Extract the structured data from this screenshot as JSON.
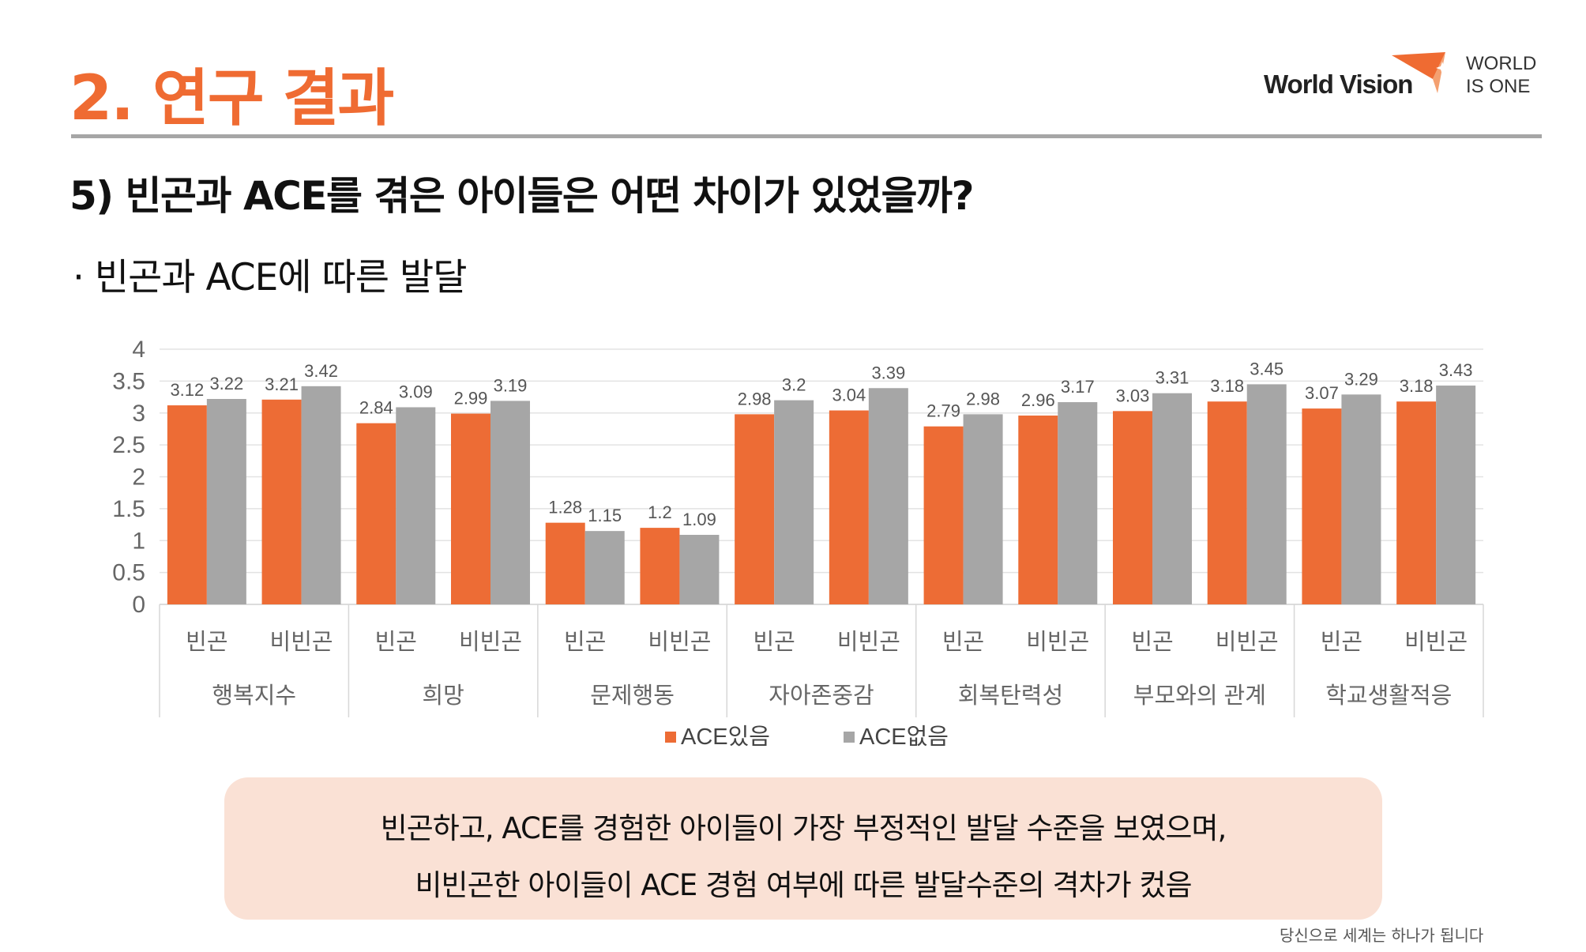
{
  "header": {
    "title": "2. 연구 결과",
    "logo_text": "World Vision",
    "logo_tagline_1": "WORLD",
    "logo_tagline_2": "IS ONE"
  },
  "question": "5) 빈곤과 ACE를 겪은 아이들은 어떤 차이가 있었을까?",
  "bullet": "· 빈곤과 ACE에 따른 발달",
  "colors": {
    "accent": "#ef6b32",
    "ace_yes": "#ed6c35",
    "ace_no": "#a6a6a6",
    "summary_bg": "#fae1d5"
  },
  "chart_data": {
    "type": "bar",
    "ylim": [
      0,
      4
    ],
    "yticks": [
      "0",
      "0.5",
      "1",
      "1.5",
      "2",
      "2.5",
      "3",
      "3.5",
      "4"
    ],
    "grid": true,
    "legend_position": "bottom",
    "groups": [
      "행복지수",
      "희망",
      "문제행동",
      "자아존중감",
      "회복탄력성",
      "부모와의 관계",
      "학교생활적응"
    ],
    "subcategories": [
      "빈곤",
      "비빈곤"
    ],
    "series": [
      {
        "name": "ACE있음",
        "values": [
          3.12,
          3.21,
          2.84,
          2.99,
          1.28,
          1.2,
          2.98,
          3.04,
          2.79,
          2.96,
          3.03,
          3.18,
          3.07,
          3.18
        ],
        "labels": [
          "3.12",
          "3.21",
          "2.84",
          "2.99",
          "1.28",
          "1.2",
          "2.98",
          "3.04",
          "2.79",
          "2.96",
          "3.03",
          "3.18",
          "3.07",
          "3.18"
        ]
      },
      {
        "name": "ACE없음",
        "values": [
          3.22,
          3.42,
          3.09,
          3.19,
          1.15,
          1.09,
          3.2,
          3.39,
          2.98,
          3.17,
          3.31,
          3.45,
          3.29,
          3.43
        ],
        "labels": [
          "3.22",
          "3.42",
          "3.09",
          "3.19",
          "1.15",
          "1.09",
          "3.2",
          "3.39",
          "2.98",
          "3.17",
          "3.31",
          "3.45",
          "3.29",
          "3.43"
        ]
      }
    ]
  },
  "summary": {
    "line1": "빈곤하고, ACE를 경험한 아이들이 가장 부정적인 발달 수준을 보였으며,",
    "line2": "비빈곤한 아이들이 ACE 경험 여부에 따른 발달수준의 격차가 컸음"
  },
  "footer": "당신으로 세계는 하나가 됩니다"
}
